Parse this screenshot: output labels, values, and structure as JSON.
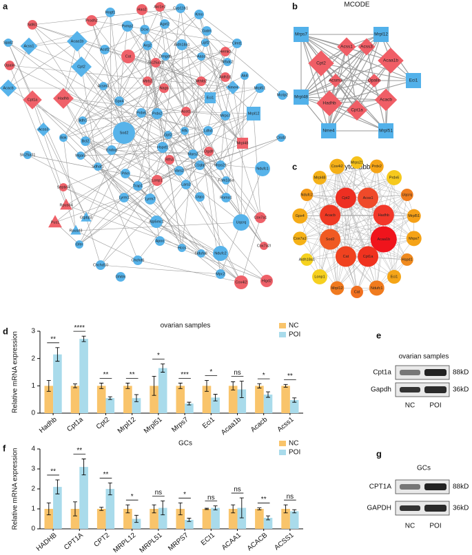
{
  "panel_labels": [
    "a",
    "b",
    "c",
    "d",
    "e",
    "f",
    "g"
  ],
  "network_a": {
    "nodes": [
      {
        "label": "Ndl61",
        "color": "#ef6169"
      },
      {
        "label": "Spat2",
        "color": "#57b3ea"
      },
      {
        "label": "Acss1",
        "color": "#57b3ea"
      },
      {
        "label": "Acaa1b",
        "color": "#57b3ea"
      },
      {
        "label": "Opalin",
        "color": "#ef6169"
      },
      {
        "label": "Cpt2",
        "color": "#57b3ea"
      },
      {
        "label": "Acacb",
        "color": "#57b3ea"
      },
      {
        "label": "Cpt1a",
        "color": "#ef6169"
      },
      {
        "label": "Hadhb",
        "color": "#ef6169"
      },
      {
        "label": "Acss3",
        "color": "#57b3ea"
      },
      {
        "label": "Bdh1",
        "color": "#57b3ea"
      },
      {
        "label": "Bok",
        "color": "#57b3ea"
      },
      {
        "label": "Slc25a31",
        "color": "#57b3ea"
      },
      {
        "label": "Hogt1",
        "color": "#57b3ea"
      },
      {
        "label": "Prodh2",
        "color": "#ef6169"
      },
      {
        "label": "Pxmp2",
        "color": "#57b3ea"
      },
      {
        "label": "Hao2",
        "color": "#ef6169"
      },
      {
        "label": "Akr1e2",
        "color": "#ef6169"
      },
      {
        "label": "Cyp11b1",
        "color": "#57b3ea"
      },
      {
        "label": "Dcxr",
        "color": "#57b3ea"
      },
      {
        "label": "Agxt2",
        "color": "#57b3ea"
      },
      {
        "label": "Kmo",
        "color": "#57b3ea"
      },
      {
        "label": "Gatm",
        "color": "#57b3ea"
      },
      {
        "label": "Lipf2",
        "color": "#57b3ea"
      },
      {
        "label": "Acsf2",
        "color": "#57b3ea"
      },
      {
        "label": "Arg2",
        "color": "#57b3ea"
      },
      {
        "label": "Cat",
        "color": "#ef6169"
      },
      {
        "label": "Aldh18a1",
        "color": "#57b3ea"
      },
      {
        "label": "Clmt1",
        "color": "#57b3ea"
      },
      {
        "label": "Slc25a13",
        "color": "#ef6169"
      },
      {
        "label": "Dmgdh",
        "color": "#57b3ea"
      },
      {
        "label": "Aass",
        "color": "#57b3ea"
      },
      {
        "label": "Hemk1",
        "color": "#ef6169"
      },
      {
        "label": "Nt5dc2",
        "color": "#57b3ea"
      },
      {
        "label": "Acsm3",
        "color": "#57b3ea"
      },
      {
        "label": "Mtrb2",
        "color": "#ef6169"
      },
      {
        "label": "Nags",
        "color": "#ef6169"
      },
      {
        "label": "Mthfd2",
        "color": "#ef6169"
      },
      {
        "label": "Aldh1l1",
        "color": "#ef6169"
      },
      {
        "label": "Ak4",
        "color": "#57b3ea"
      },
      {
        "label": "Nme4",
        "color": "#57b3ea"
      },
      {
        "label": "Eci1",
        "color": "#57b3ea"
      },
      {
        "label": "Mrpl51",
        "color": "#57b3ea"
      },
      {
        "label": "Mcrip2",
        "color": "#57b3ea"
      },
      {
        "label": "Gpx4",
        "color": "#57b3ea"
      },
      {
        "label": "Prdx6",
        "color": "#57b3ea"
      },
      {
        "label": "Prdx2",
        "color": "#57b3ea"
      },
      {
        "label": "Acot1",
        "color": "#ef6169"
      },
      {
        "label": "Mrps7",
        "color": "#57b3ea"
      },
      {
        "label": "Mrpl12",
        "color": "#57b3ea"
      },
      {
        "label": "Sod2",
        "color": "#57b3ea"
      },
      {
        "label": "Bcl2",
        "color": "#57b3ea"
      },
      {
        "label": "Gpt2",
        "color": "#57b3ea"
      },
      {
        "label": "Rfk",
        "color": "#57b3ea"
      },
      {
        "label": "Ldhd",
        "color": "#57b3ea"
      },
      {
        "label": "Cisd3",
        "color": "#57b3ea"
      },
      {
        "label": "Mrpl48",
        "color": "#ef6169"
      },
      {
        "label": "Endog",
        "color": "#57b3ea"
      },
      {
        "label": "Mgarp",
        "color": "#57b3ea"
      },
      {
        "label": "Hspd1",
        "color": "#57b3ea"
      },
      {
        "label": "Rfh3",
        "color": "#ef6169"
      },
      {
        "label": "Mars2",
        "color": "#57b3ea"
      },
      {
        "label": "Ogdh",
        "color": "#ef6169"
      },
      {
        "label": "Sdhaf1",
        "color": "#57b3ea"
      },
      {
        "label": "C1qbp",
        "color": "#57b3ea"
      },
      {
        "label": "Mrps21",
        "color": "#57b3ea"
      },
      {
        "label": "Ndufc1",
        "color": "#57b3ea"
      },
      {
        "label": "Prkn",
        "color": "#57b3ea"
      },
      {
        "label": "Vars2",
        "color": "#57b3ea"
      },
      {
        "label": "Lonp1",
        "color": "#ef6169"
      },
      {
        "label": "Lars2",
        "color": "#57b3ea"
      },
      {
        "label": "Fam136a",
        "color": "#57b3ea"
      },
      {
        "label": "Trap1",
        "color": "#57b3ea"
      },
      {
        "label": "Septin4",
        "color": "#ef6169"
      },
      {
        "label": "Lyrm1",
        "color": "#57b3ea"
      },
      {
        "label": "Lyrm7",
        "color": "#57b3ea"
      },
      {
        "label": "Uqcc",
        "color": "#57b3ea"
      },
      {
        "label": "Romo1",
        "color": "#57b3ea"
      },
      {
        "label": "Rpusd4",
        "color": "#ef6169"
      },
      {
        "label": "Gtpbp3",
        "color": "#57b3ea"
      },
      {
        "label": "Pus1",
        "color": "#ef6169"
      },
      {
        "label": "Rpusd3",
        "color": "#57b3ea"
      },
      {
        "label": "Cox7a1",
        "color": "#ef6169"
      },
      {
        "label": "Atp5mc1",
        "color": "#57b3ea"
      },
      {
        "label": "Uqcrq",
        "color": "#57b3ea"
      },
      {
        "label": "Gfer",
        "color": "#57b3ea"
      },
      {
        "label": "Apoo",
        "color": "#57b3ea"
      },
      {
        "label": "Cox7a2l",
        "color": "#ef6169"
      },
      {
        "label": "Hccs",
        "color": "#57b3ea"
      },
      {
        "label": "Ndufa8",
        "color": "#57b3ea"
      },
      {
        "label": "Ndufc2",
        "color": "#57b3ea"
      },
      {
        "label": "Chchd10",
        "color": "#57b3ea"
      },
      {
        "label": "Chchd6",
        "color": "#57b3ea"
      },
      {
        "label": "Mpc2",
        "color": "#57b3ea"
      },
      {
        "label": "Ghitm",
        "color": "#57b3ea"
      },
      {
        "label": "Cox4i2",
        "color": "#ef6169"
      },
      {
        "label": "Higd2",
        "color": "#ef6169"
      }
    ]
  },
  "network_b": {
    "title": "MCODE",
    "nodes": [
      {
        "label": "Mrps7",
        "color": "#52b1ea"
      },
      {
        "label": "Mrpl12",
        "color": "#52b1ea"
      },
      {
        "label": "Acss1",
        "color": "#f05e66"
      },
      {
        "label": "Acss3",
        "color": "#f05e66"
      },
      {
        "label": "Cpt2",
        "color": "#f05e66"
      },
      {
        "label": "Acaa1b",
        "color": "#f05e66"
      },
      {
        "label": "Mrpl48",
        "color": "#52b1ea"
      },
      {
        "label": "Acsm3",
        "color": "#f05e66"
      },
      {
        "label": "Opalin",
        "color": "#f05e66"
      },
      {
        "label": "Eci1",
        "color": "#52b1ea"
      },
      {
        "label": "Hadhb",
        "color": "#f05e66"
      },
      {
        "label": "Acacb",
        "color": "#f05e66"
      },
      {
        "label": "Cpt1a",
        "color": "#f05e66"
      },
      {
        "label": "Nme4",
        "color": "#52b1ea"
      },
      {
        "label": "Mrpl51",
        "color": "#52b1ea"
      }
    ]
  },
  "network_c": {
    "title": "CytoHubba",
    "inner": [
      {
        "label": "Acss1",
        "color": "#ef4a2a"
      },
      {
        "label": "Hadhb",
        "color": "#f2382a"
      },
      {
        "label": "Acaa1b",
        "color": "#f0141c"
      },
      {
        "label": "Cpt1a",
        "color": "#f0321f"
      },
      {
        "label": "Cat",
        "color": "#f0421f"
      },
      {
        "label": "Sod2",
        "color": "#f05a22"
      },
      {
        "label": "Acacb",
        "color": "#ef3a24"
      },
      {
        "label": "Cpt2",
        "color": "#ee2f22"
      }
    ],
    "outer": [
      {
        "label": "Mrps21",
        "color": "#f6c21b"
      },
      {
        "label": "Prdx2",
        "color": "#f5a417"
      },
      {
        "label": "Prdx6",
        "color": "#f6c91d"
      },
      {
        "label": "Uqcrq",
        "color": "#f07d1f"
      },
      {
        "label": "Mrpl51",
        "color": "#f5a017"
      },
      {
        "label": "Mrps7",
        "color": "#f5a317"
      },
      {
        "label": "Hspd1",
        "color": "#f08a1e"
      },
      {
        "label": "Eci1",
        "color": "#f5a517"
      },
      {
        "label": "Ndufc1",
        "color": "#f07b1e"
      },
      {
        "label": "Cat",
        "color": "#f07020"
      },
      {
        "label": "Mrpl12",
        "color": "#f07a1f"
      },
      {
        "label": "Lonp1",
        "color": "#f6d020"
      },
      {
        "label": "Aldh18a1",
        "color": "#f6d21f"
      },
      {
        "label": "Cox7a1",
        "color": "#f5b117"
      },
      {
        "label": "Gpx4",
        "color": "#f5ab17"
      },
      {
        "label": "Ndufc2",
        "color": "#f59a16"
      },
      {
        "label": "Mrpl48",
        "color": "#f5b219"
      },
      {
        "label": "Cox4i2",
        "color": "#f5b018"
      }
    ]
  },
  "chart_data": [
    {
      "type": "bar",
      "title": "ovarian samples",
      "y_label": "Relative mRNA expression",
      "categories": [
        "Hadhb",
        "Cpt1a",
        "Cpt2",
        "Mrpl12",
        "Mrpl51",
        "Mrps7",
        "Eci1",
        "Acaa1b",
        "Acacb",
        "Acss1"
      ],
      "ylim": [
        0,
        3
      ],
      "yticks": [
        0,
        1,
        2,
        3
      ],
      "series": [
        {
          "name": "NC",
          "color": "#f9c46b",
          "values": [
            1,
            1,
            1,
            1,
            1,
            1,
            1,
            1,
            1,
            1
          ],
          "errors": [
            0.2,
            0.07,
            0.1,
            0.1,
            0.35,
            0.1,
            0.2,
            0.15,
            0.08,
            0.05
          ]
        },
        {
          "name": "POI",
          "color": "#a9dbeb",
          "values": [
            2.15,
            2.72,
            0.55,
            0.55,
            1.65,
            0.35,
            0.57,
            0.87,
            0.68,
            0.48
          ],
          "errors": [
            0.25,
            0.1,
            0.05,
            0.13,
            0.15,
            0.05,
            0.12,
            0.3,
            0.1,
            0.08
          ]
        }
      ],
      "annotations": [
        "**",
        "****",
        "**",
        "**",
        "*",
        "***",
        "*",
        "ns",
        "*",
        "**"
      ]
    },
    {
      "type": "bar",
      "title": "GCs",
      "y_label": "Relative mRNA expression",
      "categories": [
        "HADHB",
        "CPT1A",
        "CPT2",
        "MRPL12",
        "MRPL51",
        "MRPS7",
        "ECI1",
        "ACAA1",
        "ACACB",
        "ACSS1"
      ],
      "ylim": [
        0,
        4
      ],
      "yticks": [
        0,
        1,
        2,
        3,
        4
      ],
      "series": [
        {
          "name": "NC",
          "color": "#f9c46b",
          "values": [
            1,
            1,
            1,
            1,
            1,
            1,
            1,
            1,
            1,
            1
          ],
          "errors": [
            0.3,
            0.35,
            0.08,
            0.2,
            0.2,
            0.3,
            0.03,
            0.2,
            0.05,
            0.2
          ]
        },
        {
          "name": "POI",
          "color": "#a9dbeb",
          "values": [
            2.1,
            3.1,
            2.0,
            0.5,
            1.05,
            0.45,
            1.05,
            1.05,
            0.55,
            0.88
          ],
          "errors": [
            0.35,
            0.4,
            0.3,
            0.18,
            0.35,
            0.08,
            0.1,
            0.5,
            0.1,
            0.08
          ]
        }
      ],
      "annotations": [
        "**",
        "**",
        "**",
        "*",
        "ns",
        "*",
        "ns",
        "ns",
        "**",
        "ns"
      ]
    }
  ],
  "blot_e": {
    "title": "ovarian samples",
    "rows": [
      {
        "name": "Cpt1a",
        "size": "88kD"
      },
      {
        "name": "Gapdh",
        "size": "36kD"
      }
    ],
    "lanes": [
      "NC",
      "POI"
    ]
  },
  "blot_g": {
    "title": "GCs",
    "rows": [
      {
        "name": "CPT1A",
        "size": "88kD"
      },
      {
        "name": "GAPDH",
        "size": "36kD"
      }
    ],
    "lanes": [
      "NC",
      "POI"
    ]
  }
}
